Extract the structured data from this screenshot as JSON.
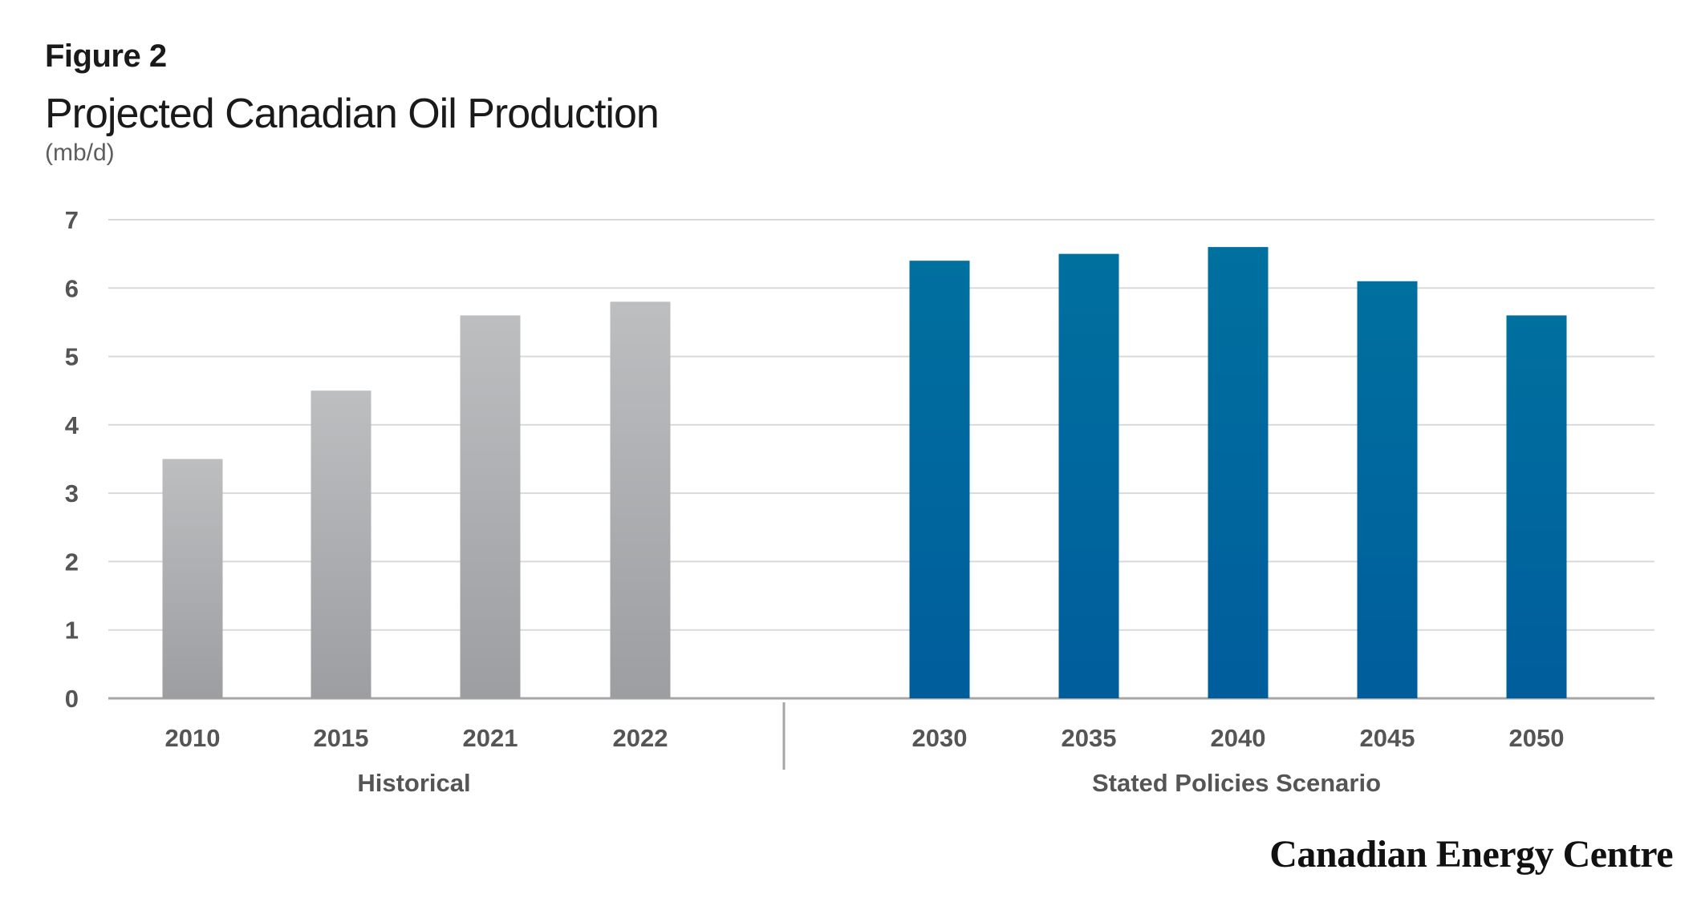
{
  "header": {
    "figure_label": "Figure 2",
    "title": "Projected Canadian Oil Production",
    "subtitle": "(mb/d)"
  },
  "chart_data": {
    "type": "bar",
    "title": "Projected Canadian Oil Production",
    "ylabel": "(mb/d)",
    "xlabel": "",
    "ylim": [
      0,
      7
    ],
    "yticks": [
      0,
      1,
      2,
      3,
      4,
      5,
      6,
      7
    ],
    "grid": true,
    "groups": [
      {
        "name": "Historical",
        "color": "#a8a9ad",
        "categories": [
          "2010",
          "2015",
          "2021",
          "2022"
        ],
        "values": [
          3.5,
          4.5,
          5.6,
          5.8
        ]
      },
      {
        "name": "Stated Policies Scenario",
        "color": "#0069a6",
        "categories": [
          "2030",
          "2035",
          "2040",
          "2045",
          "2050"
        ],
        "values": [
          6.4,
          6.5,
          6.6,
          6.1,
          5.6
        ]
      }
    ]
  },
  "branding": {
    "logo_text": "Canadian Energy Centre"
  },
  "colors": {
    "historical_top": "#bdbec0",
    "historical_bottom": "#9d9ea1",
    "scenario_top": "#00709f",
    "scenario_bottom": "#005d9c",
    "gridline": "#d9d9d9",
    "axis": "#a6a6a6"
  }
}
